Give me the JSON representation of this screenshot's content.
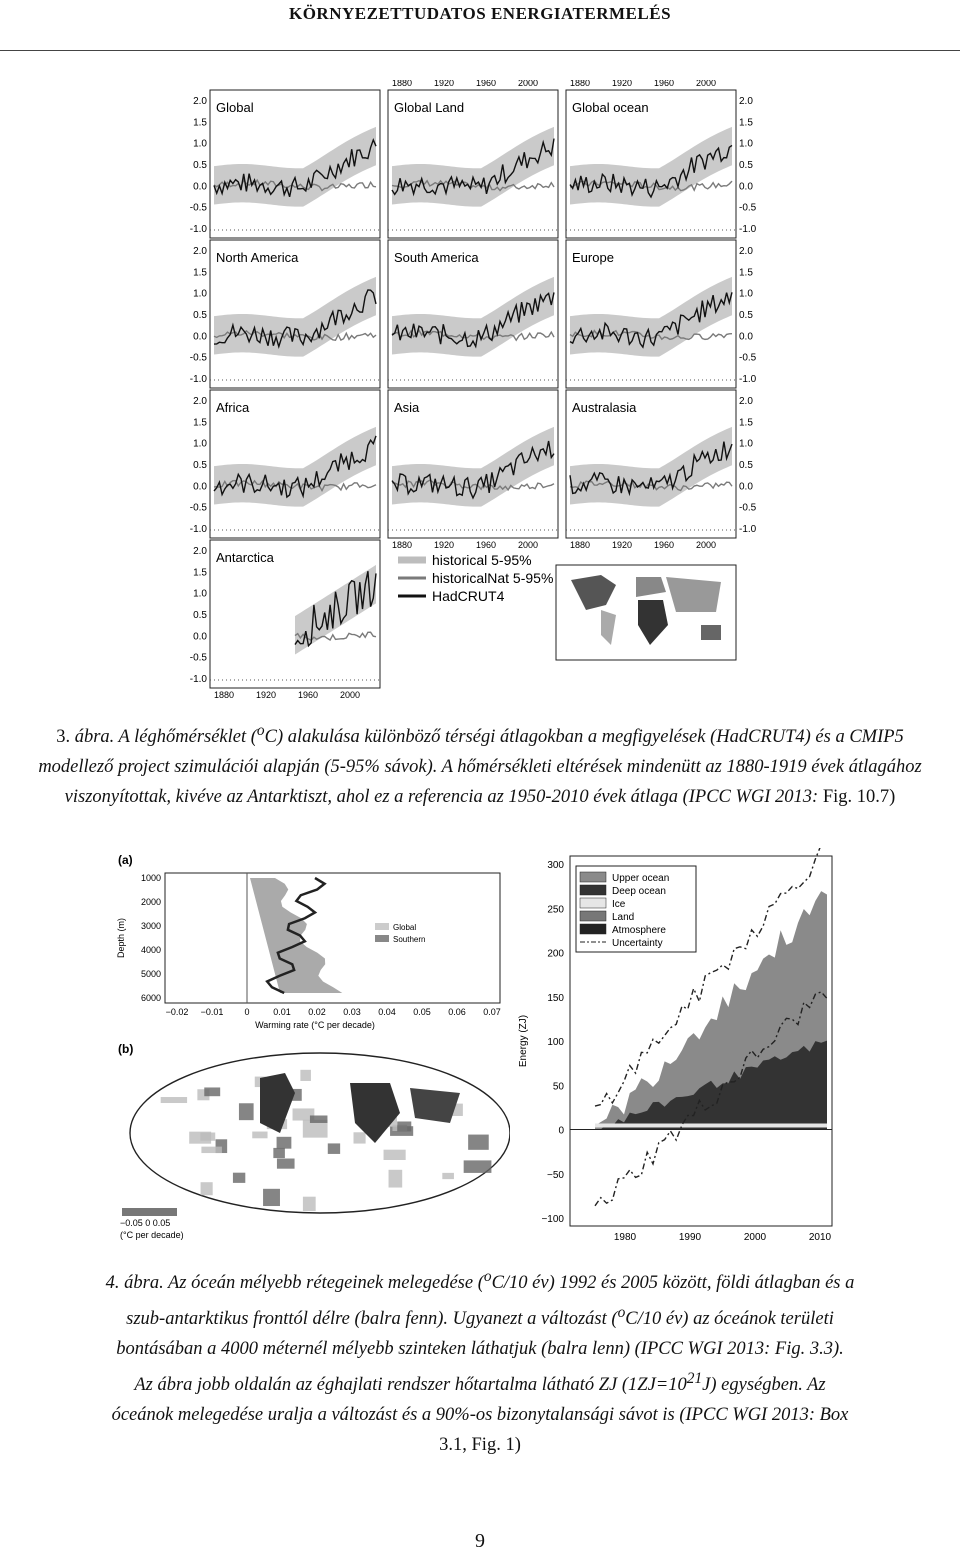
{
  "header": {
    "title": "KÖRNYEZETTUDATOS ENERGIATERMELÉS"
  },
  "figure3": {
    "panels": [
      {
        "name": "Global"
      },
      {
        "name": "Global Land"
      },
      {
        "name": "Global ocean"
      },
      {
        "name": "North America"
      },
      {
        "name": "South America"
      },
      {
        "name": "Europe"
      },
      {
        "name": "Africa"
      },
      {
        "name": "Asia"
      },
      {
        "name": "Australasia"
      },
      {
        "name": "Antarctica"
      }
    ],
    "yticks": [
      "2.0",
      "1.5",
      "1.0",
      "0.5",
      "0.0",
      "-0.5",
      "-1.0"
    ],
    "xticks": [
      "1880",
      "1920",
      "1960",
      "2000"
    ],
    "legend": [
      "historical 5-95%",
      "historicalNat 5-95%",
      "HadCRUT4"
    ],
    "colors": {
      "historical": "#bdbdbd",
      "natural": "#7a7a7a",
      "obs": "#111111"
    }
  },
  "caption3": {
    "num": "3.",
    "text_italic": "ábra. A léghőmérséklet (",
    "sup": "o",
    "line_rest": "C) alakulása különböző térségi átlagokban a megfigyelések (HadCRUT4) és a CMIP5 modellező project szimulációi alapján (5-95% sávok). A hőmérsékleti eltérések mindenütt az 1880-1919 évek átlagához viszonyítottak, kivéve az Antarktiszt, ahol ez a referencia az 1950-",
    "year_italic": "2010 évek átlaga (IPCC WGI 2013:",
    "tail": " Fig. 10.7)"
  },
  "figure4": {
    "panel_a": {
      "label": "(a)",
      "ylabel": "Depth (m)",
      "yticks": [
        "1000",
        "2000",
        "3000",
        "4000",
        "5000",
        "6000"
      ],
      "xticks": [
        "−0.02",
        "−0.01",
        "0",
        "0.01",
        "0.02",
        "0.03",
        "0.04",
        "0.05",
        "0.06",
        "0.07"
      ],
      "xlabel": "Warming rate (°C per decade)",
      "legend": [
        "Global",
        "Southern"
      ]
    },
    "panel_b": {
      "label": "(b)",
      "scale_ticks": "−0.05  0  0.05",
      "scale_unit": "(°C per decade)"
    },
    "energy": {
      "ylabel": "Energy (ZJ)",
      "yticks": [
        "300",
        "250",
        "200",
        "150",
        "100",
        "50",
        "0",
        "−50",
        "−100"
      ],
      "xticks": [
        "1980",
        "1990",
        "2000",
        "2010"
      ],
      "legend": [
        "Upper ocean",
        "Deep ocean",
        "Ice",
        "Land",
        "Atmosphere",
        "Uncertainty"
      ],
      "colors": {
        "upper": "#8a8a8a",
        "deep": "#333333",
        "ice": "#e6e6e6",
        "land": "#777777",
        "atmos": "#222222"
      }
    }
  },
  "caption4": {
    "line1": "4. ábra. Az óceán mélyebb rétegeinek melegedése (",
    "sup": "o",
    "line1b": "C/10 év) 1992 és 2005 között, földi átlagban és a",
    "line2": "szub-antarktikus fronttól délre (balra fenn). Ugyanezt a változást (",
    "line2b": "C/10 év) az óceánok területi",
    "line3": "bontásában a 4000 méternél mélyebb szinteken láthatjuk (balra lenn) (IPCC WGI 2013: Fig. 3.3).",
    "line4": "Az ábra jobb oldalán az éghajlati rendszer hőtartalma látható ZJ (1ZJ=10",
    "line4sup": "21",
    "line4b": "J) egységben. Az",
    "line5": "óceánok melegedése uralja a változást és a 90%-os bizonytalansági sávot is (IPCC WGI 2013: Box",
    "line6": "3.1, Fig. 1)"
  },
  "page": {
    "number": "9"
  }
}
